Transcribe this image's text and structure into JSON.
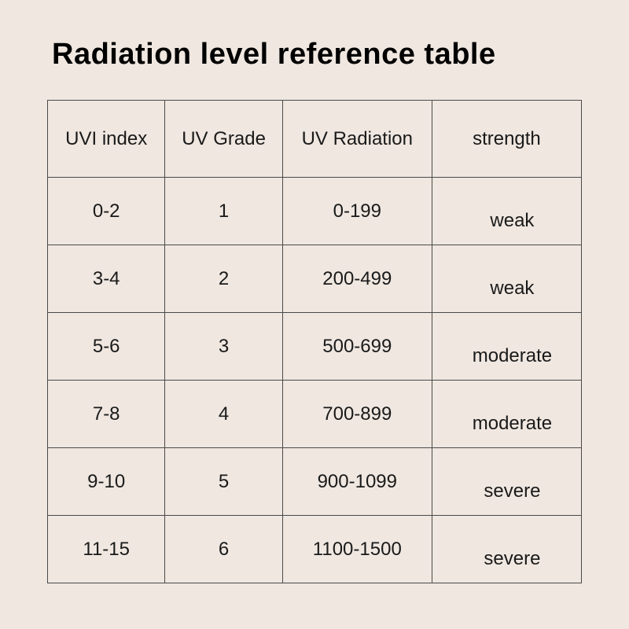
{
  "title": "Radiation level reference table",
  "table": {
    "type": "table",
    "background_color": "#efe7e0",
    "border_color": "#4a4a4a",
    "text_color": "#1a1a1a",
    "title_fontsize": 38,
    "title_fontweight": 700,
    "cell_fontsize": 24,
    "columns": [
      {
        "key": "uvi",
        "label": "UVI index",
        "width_pct": 22,
        "align": "center"
      },
      {
        "key": "grade",
        "label": "UV Grade",
        "width_pct": 22,
        "align": "center"
      },
      {
        "key": "rad",
        "label": "UV Radiation",
        "width_pct": 28,
        "align": "center"
      },
      {
        "key": "strength",
        "label": "strength",
        "width_pct": 28,
        "align": "center"
      }
    ],
    "rows": [
      {
        "uvi": "0-2",
        "grade": "1",
        "rad": "0-199",
        "strength": "weak"
      },
      {
        "uvi": "3-4",
        "grade": "2",
        "rad": "200-499",
        "strength": "weak"
      },
      {
        "uvi": "5-6",
        "grade": "3",
        "rad": "500-699",
        "strength": "moderate"
      },
      {
        "uvi": "7-8",
        "grade": "4",
        "rad": "700-899",
        "strength": "moderate"
      },
      {
        "uvi": "9-10",
        "grade": "5",
        "rad": "900-1099",
        "strength": "severe"
      },
      {
        "uvi": "11-15",
        "grade": "6",
        "rad": "1100-1500",
        "strength": "severe"
      }
    ]
  }
}
